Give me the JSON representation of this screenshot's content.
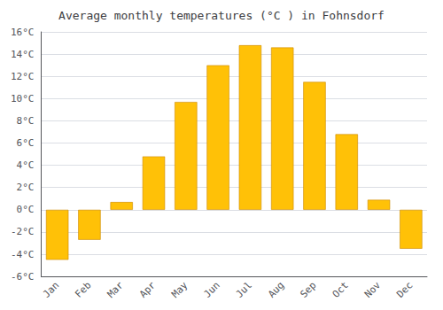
{
  "chart_data": {
    "type": "bar",
    "title": "Average monthly temperatures (°C ) in Fohnsdorf",
    "categories": [
      "Jan",
      "Feb",
      "Mar",
      "Apr",
      "May",
      "Jun",
      "Jul",
      "Aug",
      "Sep",
      "Oct",
      "Nov",
      "Dec"
    ],
    "values": [
      -4.5,
      -2.7,
      0.7,
      4.8,
      9.7,
      13.0,
      14.8,
      14.6,
      11.5,
      6.8,
      0.9,
      -3.5
    ],
    "color": "#FFC107",
    "ylim": [
      -6,
      16
    ],
    "yticks": [
      {
        "value": -6,
        "label": "-6°C"
      },
      {
        "value": -4,
        "label": "-4°C"
      },
      {
        "value": -2,
        "label": "-2°C"
      },
      {
        "value": 0,
        "label": "0°C"
      },
      {
        "value": 2,
        "label": "2°C"
      },
      {
        "value": 4,
        "label": "4°C"
      },
      {
        "value": 6,
        "label": "6°C"
      },
      {
        "value": 8,
        "label": "8°C"
      },
      {
        "value": 10,
        "label": "10°C"
      },
      {
        "value": 12,
        "label": "12°C"
      },
      {
        "value": 14,
        "label": "14°C"
      },
      {
        "value": 16,
        "label": "16°C"
      }
    ],
    "grid": true
  }
}
